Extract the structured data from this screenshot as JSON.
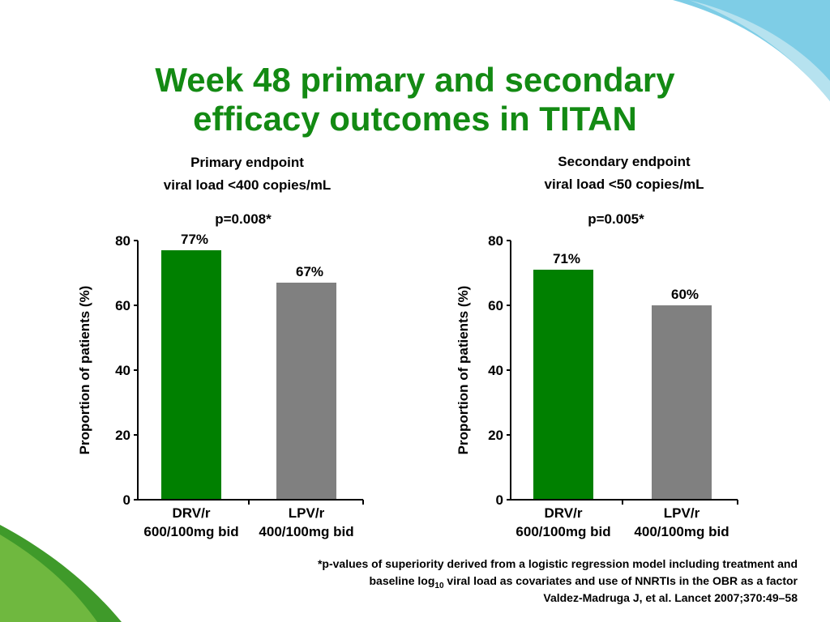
{
  "title": "Week 48 primary and secondary\nefficacy outcomes in TITAN",
  "footnote": {
    "line_1": "*p-values of superiority derived from a logistic regression model including treatment and",
    "line_2": {
      "before": "baseline log",
      "subscript": "10",
      "after": " viral load as covariates and use of NNRTIs in the OBR as a factor"
    },
    "line_3": "Valdez-Madruga J, et al. Lancet 2007;370:49–58"
  },
  "chart_data": [
    {
      "type": "bar",
      "subtitle": "Primary endpoint\nviral load <400 copies/mL",
      "annotation": "p=0.008*",
      "ylabel": "Proportion of patients (%)",
      "categories": [
        "DRV/r\n600/100mg bid",
        "LPV/r\n400/100mg bid"
      ],
      "values": [
        77,
        67
      ],
      "value_labels": [
        "77%",
        "67%"
      ],
      "colors": [
        "#008000",
        "#808080"
      ],
      "ylim": [
        0,
        80
      ],
      "yticks": [
        0,
        20,
        40,
        60,
        80
      ]
    },
    {
      "type": "bar",
      "subtitle": "Secondary endpoint\nviral load <50 copies/mL",
      "annotation": "p=0.005*",
      "ylabel": "Proportion of patients (%)",
      "categories": [
        "DRV/r\n600/100mg bid",
        "LPV/r\n400/100mg bid"
      ],
      "values": [
        71,
        60
      ],
      "value_labels": [
        "71%",
        "60%"
      ],
      "colors": [
        "#008000",
        "#808080"
      ],
      "ylim": [
        0,
        80
      ],
      "yticks": [
        0,
        20,
        40,
        60,
        80
      ]
    }
  ]
}
